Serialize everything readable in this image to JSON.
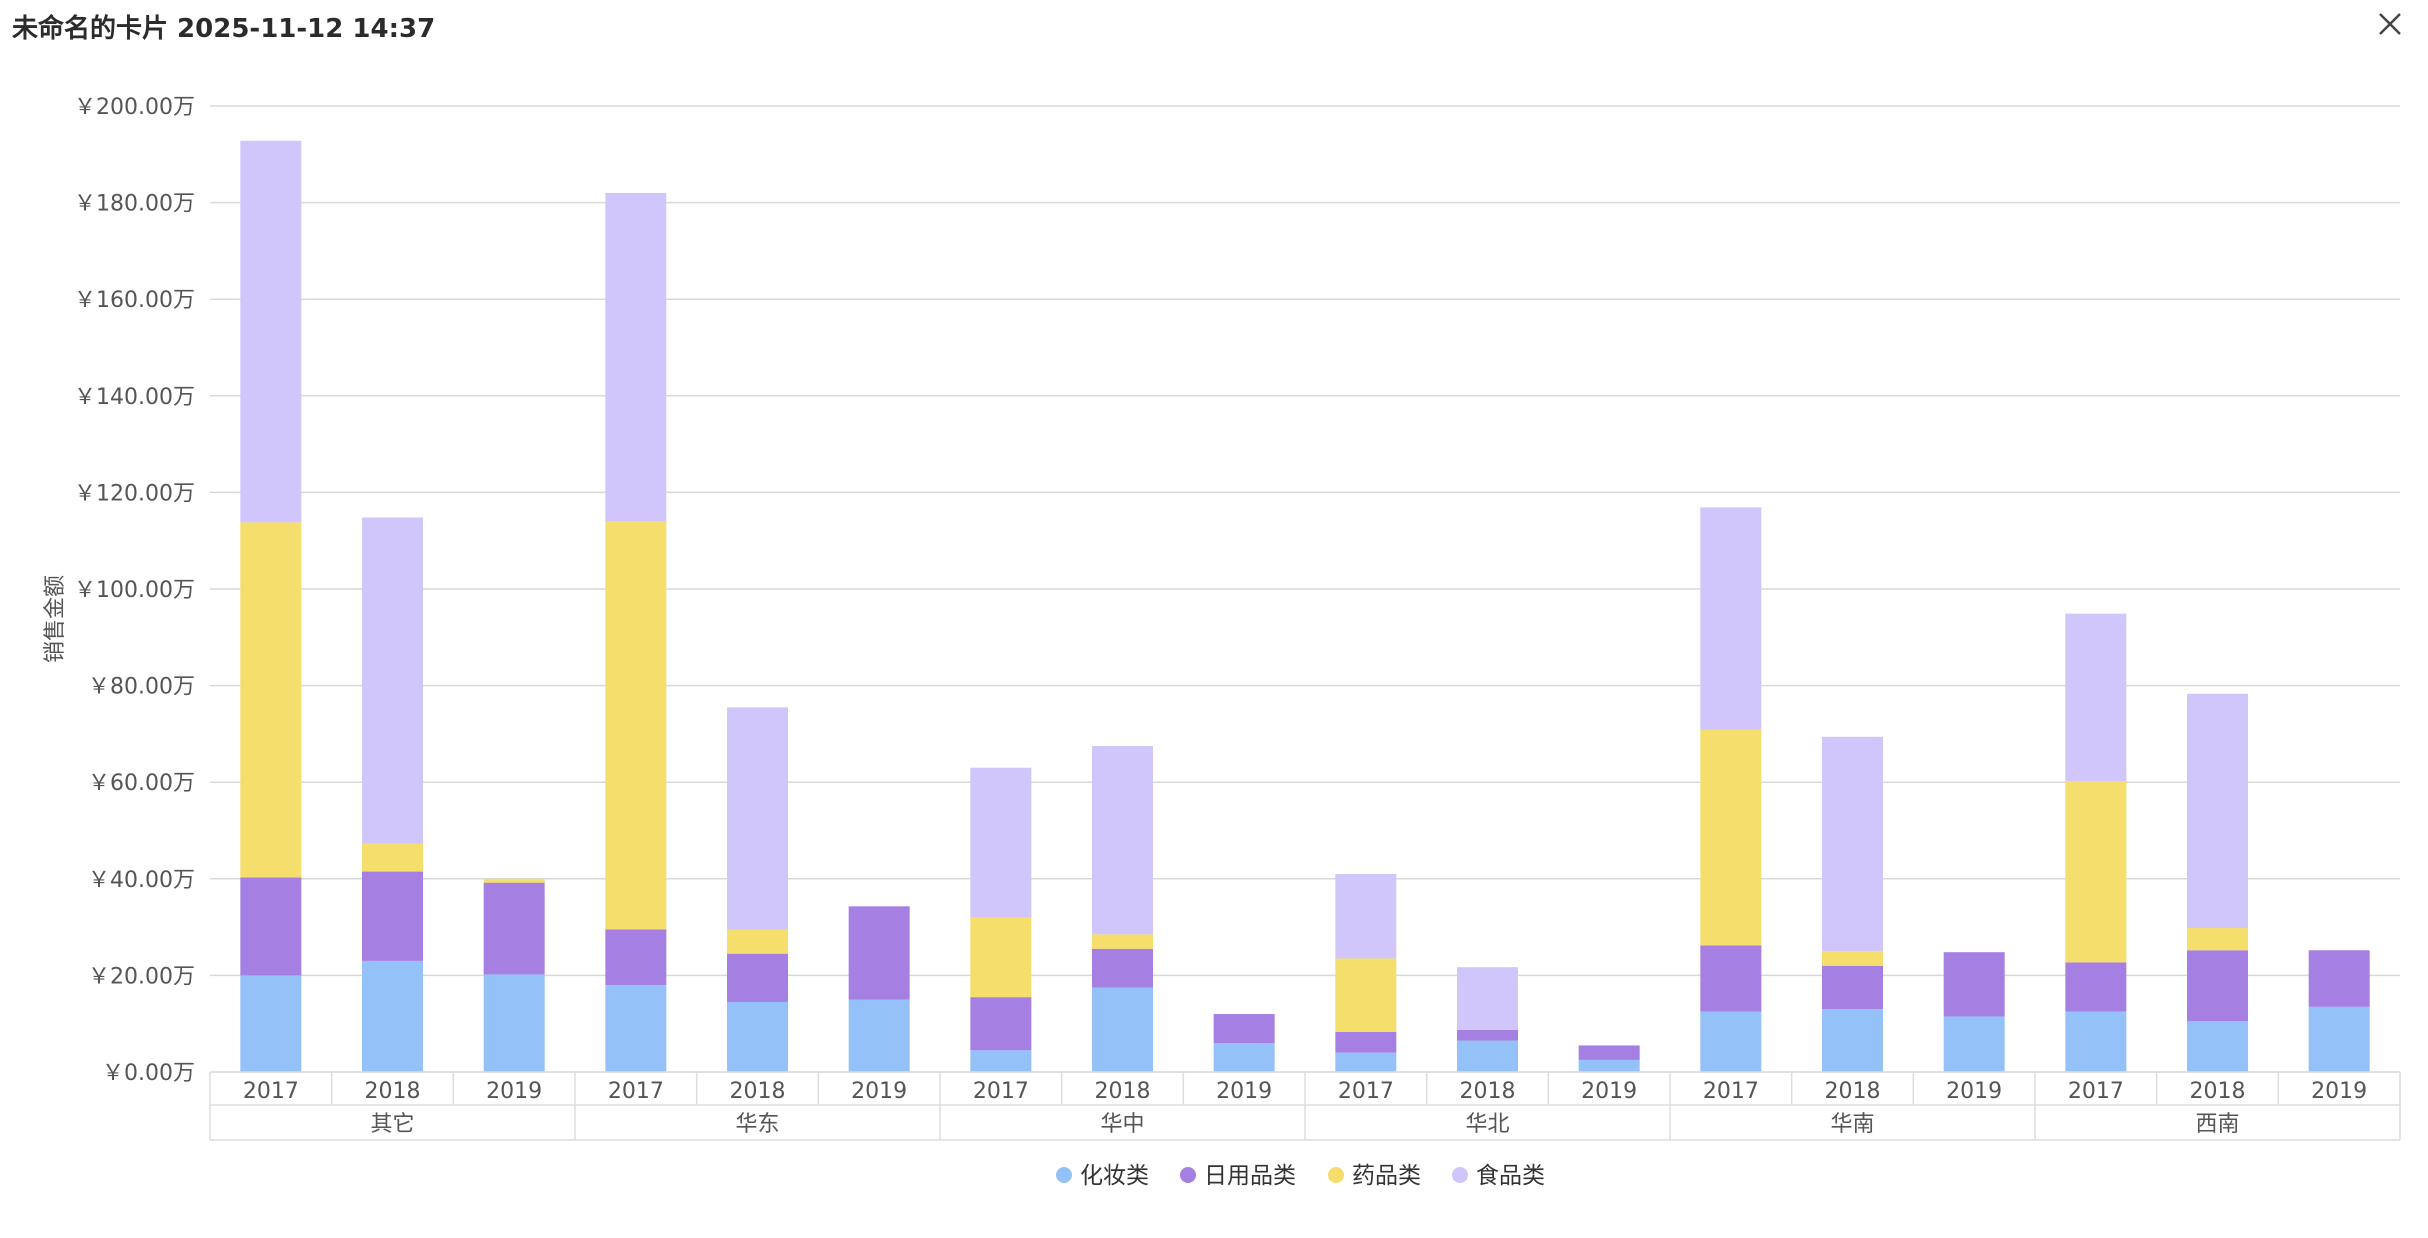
{
  "header": {
    "title": "未命名的卡片 2025-11-12 14:37",
    "close_icon": "close-icon"
  },
  "chart_data": {
    "type": "bar",
    "stacked": true,
    "ylabel": "销售金额",
    "y_tick_labels": [
      "￥0.00万",
      "￥20.00万",
      "￥40.00万",
      "￥60.00万",
      "￥80.00万",
      "￥100.00万",
      "￥120.00万",
      "￥140.00万",
      "￥160.00万",
      "￥180.00万",
      "￥200.00万"
    ],
    "ylim": [
      0,
      200
    ],
    "grid": true,
    "legend_position": "bottom-center",
    "groups": [
      "其它",
      "华东",
      "华中",
      "华北",
      "华南",
      "西南"
    ],
    "years": [
      "2017",
      "2018",
      "2019"
    ],
    "categories": [
      "其它 2017",
      "其它 2018",
      "其它 2019",
      "华东 2017",
      "华东 2018",
      "华东 2019",
      "华中 2017",
      "华中 2018",
      "华中 2019",
      "华北 2017",
      "华北 2018",
      "华北 2019",
      "华南 2017",
      "华南 2018",
      "华南 2019",
      "西南 2017",
      "西南 2018",
      "西南 2019"
    ],
    "series": [
      {
        "name": "化妆类",
        "color": "#94c1f8",
        "values": [
          20,
          23,
          20.2,
          18,
          14.5,
          15,
          4.5,
          17.5,
          6,
          4,
          6.5,
          2.5,
          12.5,
          13,
          11.5,
          12.5,
          10.5,
          13.5
        ]
      },
      {
        "name": "日用品类",
        "color": "#a57fe1",
        "values": [
          20.3,
          18.5,
          19,
          11.5,
          10,
          19.3,
          11,
          8,
          6,
          4.3,
          2.2,
          3,
          13.7,
          9,
          13.3,
          10.2,
          14.7,
          11.7
        ]
      },
      {
        "name": "药品类",
        "color": "#f5de6c",
        "values": [
          73.5,
          5.8,
          0.8,
          84.5,
          5,
          0,
          16.5,
          3,
          0,
          15.2,
          0,
          0,
          44.7,
          3,
          0,
          37.5,
          4.6,
          0
        ]
      },
      {
        "name": "食品类",
        "color": "#d0c6fb",
        "values": [
          79,
          67.5,
          0,
          68,
          46,
          0,
          31,
          39,
          0,
          17.5,
          13,
          0,
          46,
          44.4,
          0,
          34.7,
          48.5,
          0
        ]
      }
    ]
  }
}
